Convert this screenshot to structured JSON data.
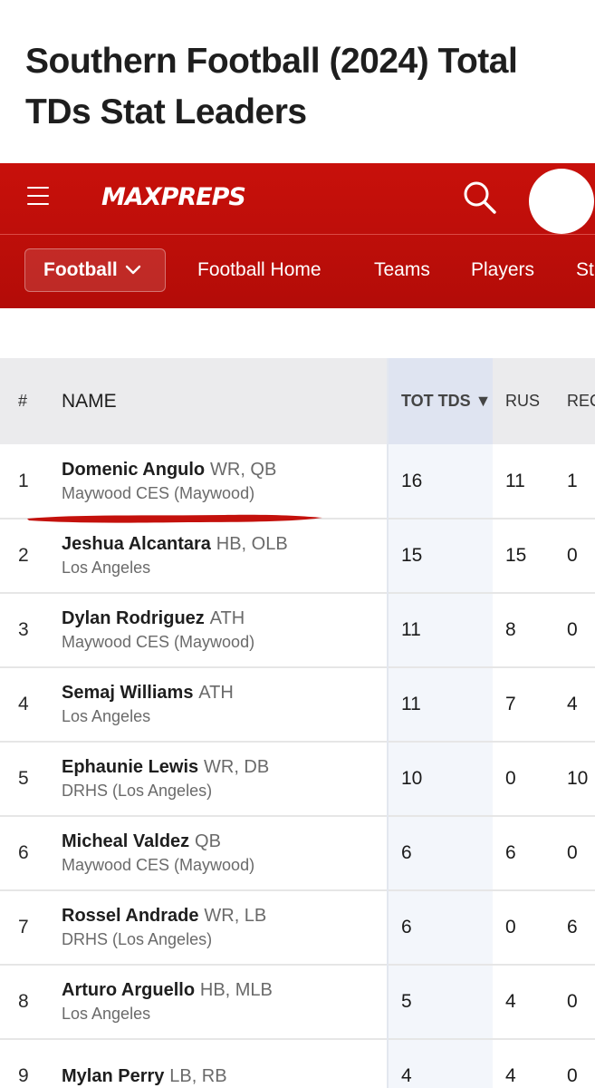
{
  "page": {
    "title": "Southern Football (2024) Total TDs Stat Leaders"
  },
  "header": {
    "logo_text": "MAXPREPS",
    "brand_color": "#c20f0a",
    "icons": {
      "menu": "hamburger-menu-icon",
      "search": "search-icon",
      "avatar": "user-avatar"
    }
  },
  "nav": {
    "sport_selector": "Football",
    "links": [
      "Football Home",
      "Teams",
      "Players",
      "St"
    ]
  },
  "table": {
    "headers": {
      "rank": "#",
      "name": "NAME",
      "tot": "TOT TDS ▼",
      "rus": "RUS",
      "rec": "REC"
    },
    "rows": [
      {
        "rank": "1",
        "name": "Domenic Angulo",
        "pos": "WR, QB",
        "school": "Maywood CES (Maywood)",
        "tot": "16",
        "rus": "11",
        "rec": "1"
      },
      {
        "rank": "2",
        "name": "Jeshua Alcantara",
        "pos": "HB, OLB",
        "school": "Los Angeles",
        "tot": "15",
        "rus": "15",
        "rec": "0"
      },
      {
        "rank": "3",
        "name": "Dylan Rodriguez",
        "pos": "ATH",
        "school": "Maywood CES (Maywood)",
        "tot": "11",
        "rus": "8",
        "rec": "0"
      },
      {
        "rank": "4",
        "name": "Semaj Williams",
        "pos": "ATH",
        "school": "Los Angeles",
        "tot": "11",
        "rus": "7",
        "rec": "4"
      },
      {
        "rank": "5",
        "name": "Ephaunie Lewis",
        "pos": "WR, DB",
        "school": "DRHS (Los Angeles)",
        "tot": "10",
        "rus": "0",
        "rec": "10"
      },
      {
        "rank": "6",
        "name": "Micheal Valdez",
        "pos": "QB",
        "school": "Maywood CES (Maywood)",
        "tot": "6",
        "rus": "6",
        "rec": "0"
      },
      {
        "rank": "7",
        "name": "Rossel Andrade",
        "pos": "WR, LB",
        "school": "DRHS (Los Angeles)",
        "tot": "6",
        "rus": "0",
        "rec": "6"
      },
      {
        "rank": "8",
        "name": "Arturo Arguello",
        "pos": "HB, MLB",
        "school": "Los Angeles",
        "tot": "5",
        "rus": "4",
        "rec": "0"
      },
      {
        "rank": "9",
        "name": "Mylan Perry",
        "pos": "LB, RB",
        "school": "",
        "tot": "4",
        "rus": "4",
        "rec": "0"
      }
    ]
  },
  "annotation": {
    "color": "#c4110c"
  }
}
